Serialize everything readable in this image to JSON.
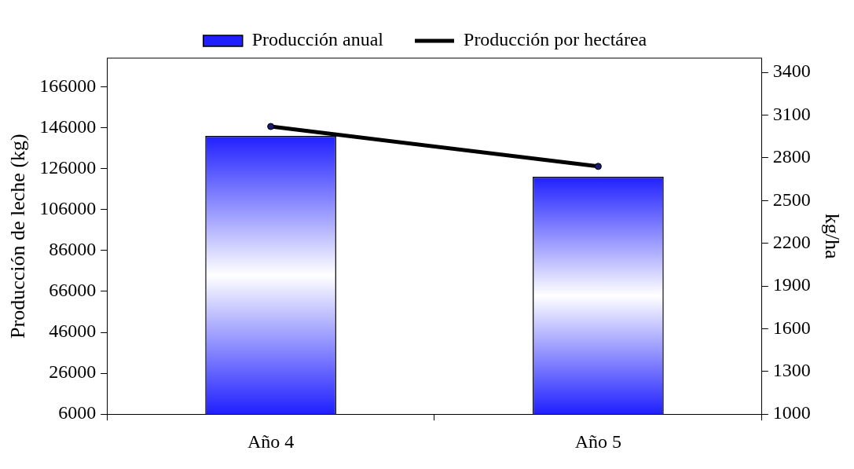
{
  "chart_data": {
    "type": "bar",
    "categories": [
      "Año 4",
      "Año 5"
    ],
    "ylabel": "Producción de leche (kg)",
    "y2label": "kg/ha",
    "series": [
      {
        "name": "Producción anual",
        "color": "#2020ff",
        "values": [
          142000,
          122000
        ]
      },
      {
        "name": "Producción por hectárea",
        "type": "line",
        "axis": "y2",
        "color": "#000000",
        "values": [
          3020,
          2740
        ]
      }
    ],
    "ylim": [
      6000,
      180000
    ],
    "yticks": [
      6000,
      26000,
      46000,
      66000,
      86000,
      106000,
      126000,
      146000,
      166000
    ],
    "y2lim": [
      1000,
      3500
    ],
    "y2ticks": [
      1000,
      1300,
      1600,
      1900,
      2200,
      2500,
      2800,
      3100,
      3400
    ],
    "legend": "top",
    "grid": false,
    "marker": "circle"
  }
}
